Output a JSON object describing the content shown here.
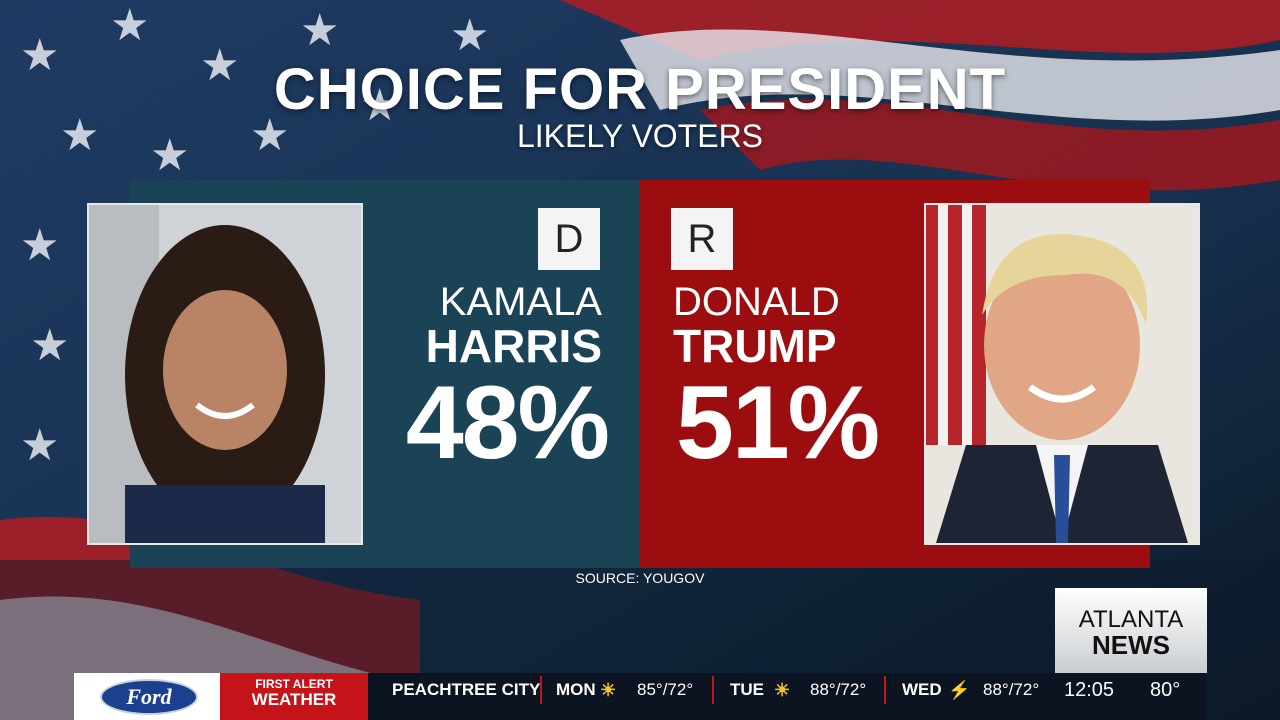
{
  "header": {
    "title": "CHOICE FOR PRESIDENT",
    "subtitle": "LIKELY VOTERS"
  },
  "candidates": [
    {
      "party": "D",
      "first_name": "KAMALA",
      "last_name": "HARRIS",
      "percent": "48%"
    },
    {
      "party": "R",
      "first_name": "DONALD",
      "last_name": "TRUMP",
      "percent": "51%"
    }
  ],
  "source": "SOURCE: YOUGOV",
  "station": {
    "name_line1": "ATLANTA",
    "name_line2": "NEWS",
    "time": "12:05",
    "temperature": "80°"
  },
  "ticker": {
    "sponsor": "Ford",
    "segment_line1": "FIRST ALERT",
    "segment_line2": "WEATHER",
    "location": "PEACHTREE CITY",
    "forecast": [
      {
        "day": "MON",
        "temps": "85°/72°"
      },
      {
        "day": "TUE",
        "temps": "88°/72°"
      },
      {
        "day": "WED",
        "temps": "88°/72°"
      }
    ]
  }
}
